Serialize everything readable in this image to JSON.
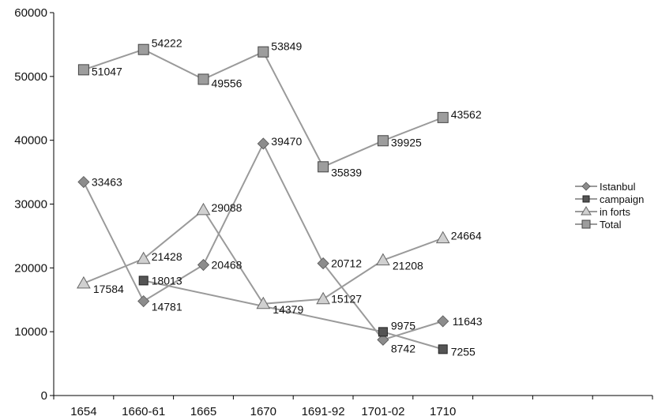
{
  "chart_data": {
    "type": "line",
    "categories": [
      "1654",
      "1660-61",
      "1665",
      "1670",
      "1691-92",
      "1701-02",
      "1710"
    ],
    "ylim": [
      0,
      60000
    ],
    "yticks": [
      0,
      10000,
      20000,
      30000,
      40000,
      50000,
      60000
    ],
    "grid": false,
    "legend_position": "right",
    "series": [
      {
        "name": "Istanbul",
        "marker": "diamond",
        "values": [
          33463,
          14781,
          20468,
          39470,
          20712,
          8742,
          11643
        ]
      },
      {
        "name": "campaign",
        "marker": "square-small",
        "values": [
          null,
          18013,
          null,
          null,
          null,
          9975,
          7255
        ]
      },
      {
        "name": "in forts",
        "marker": "triangle",
        "values": [
          17584,
          21428,
          29088,
          14379,
          15127,
          21208,
          24664
        ]
      },
      {
        "name": "Total",
        "marker": "square",
        "values": [
          51047,
          54222,
          49556,
          53849,
          35839,
          39925,
          43562
        ]
      }
    ]
  }
}
